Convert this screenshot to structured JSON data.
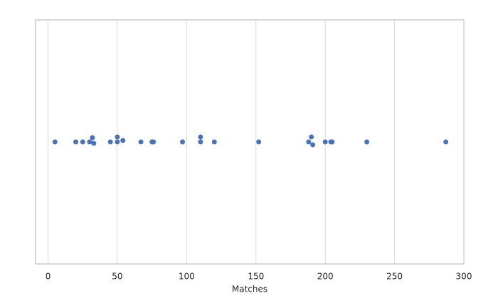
{
  "chart_data": {
    "type": "strip",
    "xlabel": "Matches",
    "values": [
      5,
      20,
      25,
      30,
      32,
      33,
      45,
      50,
      50,
      54,
      67,
      75,
      76,
      97,
      110,
      110,
      120,
      152,
      188,
      190,
      191,
      200,
      204,
      205,
      230,
      287
    ],
    "color": "#4c72b0",
    "xlim": [
      -9,
      300
    ],
    "xticks": [
      0,
      50,
      100,
      150,
      200,
      250,
      300
    ],
    "grid": true
  }
}
